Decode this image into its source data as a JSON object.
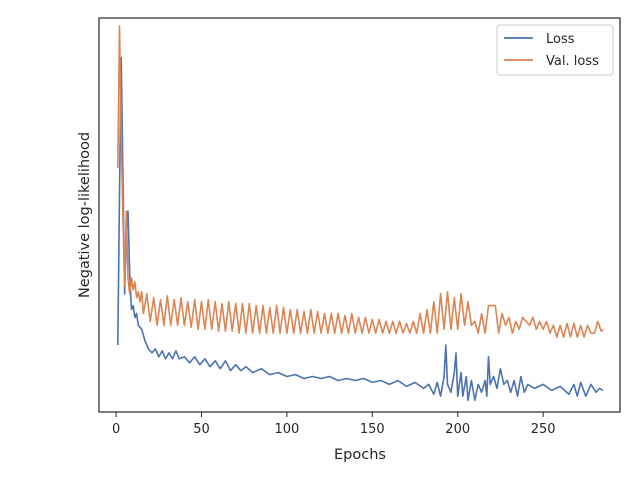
{
  "chart_data": {
    "type": "line",
    "xlabel": "Epochs",
    "ylabel": "Negative log-likelihood",
    "xlim": [
      -10,
      295
    ],
    "ylim": [
      0,
      1
    ],
    "xticks": [
      0,
      50,
      100,
      150,
      200,
      250
    ],
    "xtick_labels": [
      "0",
      "50",
      "100",
      "150",
      "200",
      "250"
    ],
    "yticks_shown": false,
    "grid": false,
    "legend_position": "top-right",
    "series": [
      {
        "name": "Loss",
        "color": "#4c72b0",
        "points": [
          [
            1,
            0.17
          ],
          [
            2,
            0.55
          ],
          [
            3,
            0.9
          ],
          [
            4,
            0.6
          ],
          [
            5,
            0.3
          ],
          [
            6,
            0.45
          ],
          [
            7,
            0.51
          ],
          [
            8,
            0.35
          ],
          [
            9,
            0.26
          ],
          [
            10,
            0.27
          ],
          [
            11,
            0.24
          ],
          [
            12,
            0.25
          ],
          [
            13,
            0.22
          ],
          [
            15,
            0.21
          ],
          [
            17,
            0.18
          ],
          [
            19,
            0.16
          ],
          [
            21,
            0.15
          ],
          [
            23,
            0.16
          ],
          [
            25,
            0.14
          ],
          [
            27,
            0.155
          ],
          [
            29,
            0.135
          ],
          [
            31,
            0.15
          ],
          [
            33,
            0.135
          ],
          [
            35,
            0.155
          ],
          [
            37,
            0.135
          ],
          [
            40,
            0.14
          ],
          [
            43,
            0.125
          ],
          [
            46,
            0.14
          ],
          [
            49,
            0.12
          ],
          [
            52,
            0.135
          ],
          [
            55,
            0.115
          ],
          [
            58,
            0.13
          ],
          [
            61,
            0.11
          ],
          [
            64,
            0.13
          ],
          [
            67,
            0.105
          ],
          [
            70,
            0.12
          ],
          [
            73,
            0.105
          ],
          [
            76,
            0.115
          ],
          [
            80,
            0.1
          ],
          [
            85,
            0.11
          ],
          [
            90,
            0.095
          ],
          [
            95,
            0.1
          ],
          [
            100,
            0.09
          ],
          [
            105,
            0.095
          ],
          [
            110,
            0.085
          ],
          [
            115,
            0.09
          ],
          [
            120,
            0.085
          ],
          [
            125,
            0.09
          ],
          [
            130,
            0.08
          ],
          [
            135,
            0.085
          ],
          [
            140,
            0.08
          ],
          [
            145,
            0.085
          ],
          [
            150,
            0.075
          ],
          [
            155,
            0.08
          ],
          [
            160,
            0.07
          ],
          [
            165,
            0.08
          ],
          [
            170,
            0.065
          ],
          [
            175,
            0.075
          ],
          [
            180,
            0.06
          ],
          [
            183,
            0.07
          ],
          [
            186,
            0.045
          ],
          [
            188,
            0.075
          ],
          [
            190,
            0.04
          ],
          [
            192,
            0.09
          ],
          [
            193,
            0.17
          ],
          [
            194,
            0.07
          ],
          [
            196,
            0.05
          ],
          [
            198,
            0.1
          ],
          [
            199,
            0.15
          ],
          [
            200,
            0.04
          ],
          [
            202,
            0.1
          ],
          [
            203,
            0.04
          ],
          [
            205,
            0.09
          ],
          [
            206,
            0.03
          ],
          [
            208,
            0.08
          ],
          [
            210,
            0.03
          ],
          [
            212,
            0.07
          ],
          [
            214,
            0.05
          ],
          [
            216,
            0.08
          ],
          [
            217,
            0.04
          ],
          [
            218,
            0.14
          ],
          [
            219,
            0.07
          ],
          [
            221,
            0.09
          ],
          [
            223,
            0.06
          ],
          [
            225,
            0.11
          ],
          [
            227,
            0.07
          ],
          [
            229,
            0.08
          ],
          [
            231,
            0.05
          ],
          [
            233,
            0.08
          ],
          [
            235,
            0.04
          ],
          [
            237,
            0.09
          ],
          [
            239,
            0.05
          ],
          [
            241,
            0.07
          ],
          [
            245,
            0.06
          ],
          [
            250,
            0.07
          ],
          [
            255,
            0.055
          ],
          [
            260,
            0.065
          ],
          [
            265,
            0.045
          ],
          [
            268,
            0.07
          ],
          [
            270,
            0.04
          ],
          [
            272,
            0.075
          ],
          [
            275,
            0.04
          ],
          [
            278,
            0.07
          ],
          [
            281,
            0.05
          ],
          [
            283,
            0.06
          ],
          [
            285,
            0.055
          ]
        ]
      },
      {
        "name": "Val. loss",
        "color": "#dd8452",
        "points": [
          [
            1,
            0.62
          ],
          [
            2,
            0.98
          ],
          [
            3,
            0.7
          ],
          [
            4,
            0.5
          ],
          [
            5,
            0.32
          ],
          [
            6,
            0.51
          ],
          [
            7,
            0.34
          ],
          [
            8,
            0.3
          ],
          [
            9,
            0.34
          ],
          [
            10,
            0.31
          ],
          [
            11,
            0.33
          ],
          [
            12,
            0.29
          ],
          [
            13,
            0.305
          ],
          [
            14,
            0.28
          ],
          [
            15,
            0.305
          ],
          [
            16,
            0.25
          ],
          [
            18,
            0.3
          ],
          [
            20,
            0.23
          ],
          [
            22,
            0.29
          ],
          [
            24,
            0.22
          ],
          [
            26,
            0.285
          ],
          [
            28,
            0.22
          ],
          [
            30,
            0.295
          ],
          [
            32,
            0.22
          ],
          [
            34,
            0.285
          ],
          [
            36,
            0.22
          ],
          [
            38,
            0.29
          ],
          [
            40,
            0.22
          ],
          [
            42,
            0.28
          ],
          [
            44,
            0.215
          ],
          [
            46,
            0.285
          ],
          [
            48,
            0.21
          ],
          [
            50,
            0.28
          ],
          [
            52,
            0.21
          ],
          [
            54,
            0.285
          ],
          [
            56,
            0.21
          ],
          [
            58,
            0.28
          ],
          [
            60,
            0.205
          ],
          [
            62,
            0.275
          ],
          [
            64,
            0.205
          ],
          [
            66,
            0.28
          ],
          [
            68,
            0.205
          ],
          [
            70,
            0.275
          ],
          [
            72,
            0.2
          ],
          [
            74,
            0.275
          ],
          [
            76,
            0.2
          ],
          [
            78,
            0.275
          ],
          [
            80,
            0.2
          ],
          [
            82,
            0.27
          ],
          [
            84,
            0.2
          ],
          [
            86,
            0.27
          ],
          [
            88,
            0.2
          ],
          [
            90,
            0.265
          ],
          [
            92,
            0.2
          ],
          [
            94,
            0.27
          ],
          [
            96,
            0.2
          ],
          [
            98,
            0.265
          ],
          [
            100,
            0.2
          ],
          [
            102,
            0.26
          ],
          [
            104,
            0.2
          ],
          [
            106,
            0.26
          ],
          [
            108,
            0.2
          ],
          [
            110,
            0.255
          ],
          [
            112,
            0.2
          ],
          [
            114,
            0.26
          ],
          [
            116,
            0.2
          ],
          [
            118,
            0.255
          ],
          [
            120,
            0.2
          ],
          [
            122,
            0.25
          ],
          [
            124,
            0.2
          ],
          [
            126,
            0.25
          ],
          [
            128,
            0.2
          ],
          [
            130,
            0.25
          ],
          [
            132,
            0.2
          ],
          [
            134,
            0.245
          ],
          [
            136,
            0.2
          ],
          [
            138,
            0.25
          ],
          [
            140,
            0.2
          ],
          [
            142,
            0.24
          ],
          [
            144,
            0.2
          ],
          [
            146,
            0.24
          ],
          [
            148,
            0.2
          ],
          [
            150,
            0.235
          ],
          [
            152,
            0.2
          ],
          [
            154,
            0.235
          ],
          [
            156,
            0.2
          ],
          [
            158,
            0.23
          ],
          [
            160,
            0.2
          ],
          [
            162,
            0.23
          ],
          [
            164,
            0.2
          ],
          [
            166,
            0.23
          ],
          [
            168,
            0.2
          ],
          [
            170,
            0.225
          ],
          [
            172,
            0.2
          ],
          [
            174,
            0.23
          ],
          [
            176,
            0.2
          ],
          [
            178,
            0.25
          ],
          [
            180,
            0.2
          ],
          [
            182,
            0.26
          ],
          [
            184,
            0.2
          ],
          [
            186,
            0.28
          ],
          [
            188,
            0.2
          ],
          [
            190,
            0.3
          ],
          [
            192,
            0.21
          ],
          [
            194,
            0.305
          ],
          [
            196,
            0.21
          ],
          [
            198,
            0.29
          ],
          [
            200,
            0.21
          ],
          [
            202,
            0.3
          ],
          [
            204,
            0.22
          ],
          [
            206,
            0.28
          ],
          [
            208,
            0.22
          ],
          [
            210,
            0.23
          ],
          [
            212,
            0.2
          ],
          [
            214,
            0.25
          ],
          [
            216,
            0.2
          ],
          [
            218,
            0.27
          ],
          [
            220,
            0.27
          ],
          [
            222,
            0.27
          ],
          [
            224,
            0.2
          ],
          [
            226,
            0.25
          ],
          [
            228,
            0.22
          ],
          [
            230,
            0.24
          ],
          [
            232,
            0.2
          ],
          [
            234,
            0.23
          ],
          [
            236,
            0.21
          ],
          [
            238,
            0.24
          ],
          [
            240,
            0.23
          ],
          [
            242,
            0.22
          ],
          [
            244,
            0.24
          ],
          [
            246,
            0.21
          ],
          [
            248,
            0.23
          ],
          [
            250,
            0.21
          ],
          [
            252,
            0.23
          ],
          [
            254,
            0.2
          ],
          [
            256,
            0.22
          ],
          [
            258,
            0.19
          ],
          [
            260,
            0.22
          ],
          [
            262,
            0.19
          ],
          [
            264,
            0.225
          ],
          [
            266,
            0.19
          ],
          [
            268,
            0.225
          ],
          [
            270,
            0.19
          ],
          [
            272,
            0.22
          ],
          [
            274,
            0.19
          ],
          [
            276,
            0.22
          ],
          [
            278,
            0.2
          ],
          [
            280,
            0.2
          ],
          [
            282,
            0.23
          ],
          [
            284,
            0.205
          ],
          [
            285,
            0.21
          ]
        ]
      }
    ]
  }
}
